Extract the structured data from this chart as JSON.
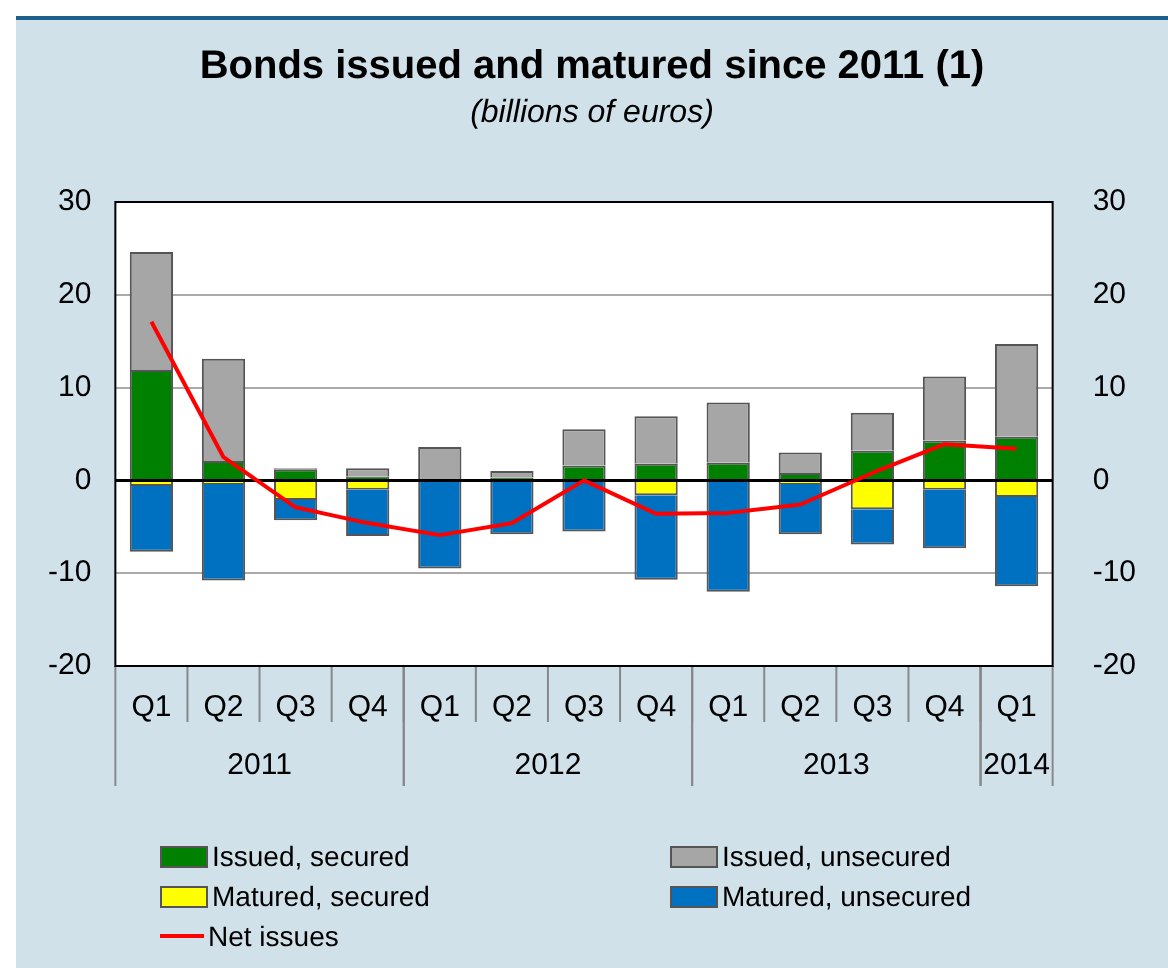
{
  "chart_data": {
    "type": "bar",
    "stacked": true,
    "title": "Bonds issued and matured since 2011 (1)",
    "subtitle": "(billions of euros)",
    "categories": [
      "Q1",
      "Q2",
      "Q3",
      "Q4",
      "Q1",
      "Q2",
      "Q3",
      "Q4",
      "Q1",
      "Q2",
      "Q3",
      "Q4",
      "Q1"
    ],
    "annotations": [
      "2011",
      "2012",
      "2013",
      "2014"
    ],
    "series": [
      {
        "name": "Issued, secured",
        "color": "#008000",
        "values": [
          11.9,
          2.1,
          1.2,
          0.4,
          0,
          0.3,
          1.6,
          1.8,
          1.9,
          0.8,
          3.2,
          4.3,
          4.7
        ]
      },
      {
        "name": "Issued, unsecured",
        "color": "#a6a6a6",
        "values": [
          12.7,
          11.0,
          0.1,
          0.9,
          3.6,
          0.7,
          3.9,
          5.1,
          6.5,
          2.2,
          4.1,
          6.9,
          10.0
        ]
      },
      {
        "name": "Matured, secured",
        "color": "#ffff00",
        "values": [
          -0.6,
          -0.4,
          -2.1,
          -1.0,
          0,
          0,
          0,
          -1.6,
          0,
          -0.4,
          -3.1,
          -1.0,
          -1.8
        ]
      },
      {
        "name": "Matured, unsecured",
        "color": "#0070c0",
        "values": [
          -7.1,
          -10.4,
          -2.2,
          -5.0,
          -9.5,
          -5.8,
          -5.5,
          -9.1,
          -12.0,
          -5.4,
          -3.8,
          -6.3,
          -9.6
        ]
      },
      {
        "name": "Net issues",
        "type": "line",
        "color": "#ff0000",
        "values": [
          17.1,
          2.5,
          -2.9,
          -4.6,
          -5.9,
          -4.6,
          0,
          -3.6,
          -3.5,
          -2.6,
          0.8,
          3.9,
          3.4
        ]
      }
    ],
    "ylim": [
      -20,
      30
    ],
    "yticks": [
      -20,
      -10,
      0,
      10,
      20,
      30
    ],
    "y2lim": [
      -20,
      30
    ],
    "y2ticks": [
      -20,
      -10,
      0,
      10,
      20,
      30
    ],
    "grid": "y",
    "legend": "bottom",
    "marker": "none",
    "line_style": "solid"
  }
}
